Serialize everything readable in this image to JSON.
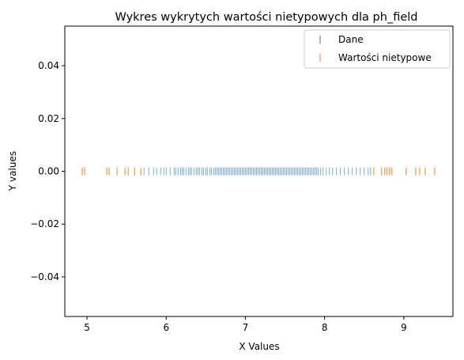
{
  "chart_data": {
    "type": "scatter",
    "title": "Wykres wykrytych wartości nietypowych dla ph_field",
    "xlabel": "X Values",
    "ylabel": "Y values",
    "xlim": [
      4.72,
      9.62
    ],
    "ylim": [
      -0.055,
      0.055
    ],
    "xticks": [
      5,
      6,
      7,
      8,
      9
    ],
    "yticks": [
      0.04,
      0.02,
      0.0,
      -0.02,
      -0.04
    ],
    "xtick_labels": [
      "5",
      "6",
      "7",
      "8",
      "9"
    ],
    "ytick_labels": [
      "0.04",
      "0.02",
      "0.00",
      "−0.02",
      "−0.04"
    ],
    "grid": false,
    "legend_position": "top-right",
    "series": [
      {
        "name": "Dane",
        "color": "#1f77b4",
        "marker": "vline",
        "y": 0,
        "x": [
          5.72,
          5.78,
          5.84,
          5.88,
          5.93,
          5.97,
          6.0,
          6.05,
          6.1,
          6.12,
          6.15,
          6.18,
          6.2,
          6.22,
          6.25,
          6.28,
          6.3,
          6.32,
          6.35,
          6.38,
          6.4,
          6.42,
          6.45,
          6.47,
          6.5,
          6.52,
          6.55,
          6.57,
          6.6,
          6.62,
          6.64,
          6.66,
          6.68,
          6.7,
          6.72,
          6.74,
          6.76,
          6.78,
          6.8,
          6.82,
          6.84,
          6.86,
          6.88,
          6.9,
          6.92,
          6.94,
          6.96,
          6.98,
          7.0,
          7.02,
          7.04,
          7.06,
          7.08,
          7.1,
          7.12,
          7.14,
          7.16,
          7.18,
          7.2,
          7.22,
          7.24,
          7.26,
          7.28,
          7.3,
          7.32,
          7.34,
          7.36,
          7.38,
          7.4,
          7.42,
          7.44,
          7.46,
          7.48,
          7.5,
          7.52,
          7.54,
          7.56,
          7.58,
          7.6,
          7.62,
          7.64,
          7.66,
          7.68,
          7.7,
          7.72,
          7.74,
          7.76,
          7.78,
          7.8,
          7.82,
          7.84,
          7.86,
          7.88,
          7.9,
          7.92,
          7.95,
          7.98,
          8.02,
          8.06,
          8.1,
          8.15,
          8.2,
          8.25,
          8.3,
          8.35,
          8.4,
          8.45,
          8.5,
          8.55,
          8.58
        ]
      },
      {
        "name": "Wartości nietypowe",
        "color": "#ff7f0e",
        "marker": "vline",
        "y": 0,
        "x": [
          4.94,
          4.97,
          5.25,
          5.28,
          5.38,
          5.48,
          5.52,
          5.6,
          5.68,
          8.62,
          8.72,
          8.76,
          8.79,
          8.82,
          8.85,
          9.03,
          9.15,
          9.2,
          9.27,
          9.39
        ]
      }
    ]
  }
}
